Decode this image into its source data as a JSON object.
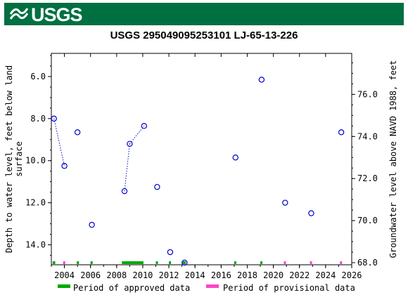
{
  "header": {
    "logo_text": "USGS",
    "brand_color": "#006f41"
  },
  "chart_data": {
    "type": "scatter",
    "title": "USGS 295049095253101 LJ-65-13-226",
    "ylabel_left": "Depth to water level, feet below land surface",
    "ylabel_left_lines": [
      "Depth to water level, feet below land",
      "surface"
    ],
    "ylabel_right": "Groundwater level above NAVD 1988, feet",
    "x_ticks": [
      "2004",
      "2006",
      "2008",
      "2010",
      "2012",
      "2014",
      "2016",
      "2018",
      "2020",
      "2022",
      "2024",
      "2026"
    ],
    "y_ticks_left": [
      "6.0",
      "8.0",
      "10.0",
      "12.0",
      "14.0"
    ],
    "y_ticks_right": [
      "76.0",
      "74.0",
      "72.0",
      "70.0",
      "68.0"
    ],
    "xlim": [
      2003.0,
      2026.0
    ],
    "ylim_left": [
      14.95,
      4.9
    ],
    "ylim_right": [
      67.9,
      77.95
    ],
    "y_inverted_left": true,
    "marker_color": "#0000cc",
    "series": [
      {
        "name": "",
        "points": [
          {
            "x": 2003.2,
            "y": 8.0
          },
          {
            "x": 2004.0,
            "y": 10.25
          },
          {
            "x": 2005.0,
            "y": 8.65
          },
          {
            "x": 2006.1,
            "y": 13.05
          },
          {
            "x": 2008.6,
            "y": 11.45
          },
          {
            "x": 2009.0,
            "y": 9.2
          },
          {
            "x": 2010.1,
            "y": 8.35
          },
          {
            "x": 2011.1,
            "y": 11.25
          },
          {
            "x": 2012.1,
            "y": 14.35
          },
          {
            "x": 2013.2,
            "y": 14.85
          },
          {
            "x": 2017.1,
            "y": 9.85
          },
          {
            "x": 2019.1,
            "y": 6.15
          },
          {
            "x": 2020.9,
            "y": 12.0
          },
          {
            "x": 2022.9,
            "y": 12.5
          },
          {
            "x": 2025.2,
            "y": 8.65
          }
        ],
        "connected_pairs": [
          [
            0,
            1
          ],
          [
            4,
            5
          ],
          [
            5,
            6
          ]
        ]
      }
    ],
    "approved_periods": [
      [
        2003.1,
        2003.3
      ],
      [
        2004.95,
        2005.1
      ],
      [
        2006.0,
        2006.15
      ],
      [
        2008.4,
        2010.05
      ],
      [
        2011.0,
        2011.15
      ],
      [
        2012.0,
        2012.15
      ],
      [
        2013.05,
        2013.3
      ],
      [
        2017.0,
        2017.15
      ],
      [
        2019.0,
        2019.15
      ]
    ],
    "provisional_periods": [
      [
        2003.9,
        2004.05
      ],
      [
        2020.8,
        2020.95
      ],
      [
        2022.8,
        2022.95
      ],
      [
        2025.1,
        2025.25
      ]
    ],
    "approved_color": "#00aa00",
    "provisional_color": "#ff44cc",
    "legend": {
      "placement": "bottom",
      "approved_label": "Period of approved data",
      "provisional_label": "Period of provisional data"
    },
    "grid": false
  }
}
